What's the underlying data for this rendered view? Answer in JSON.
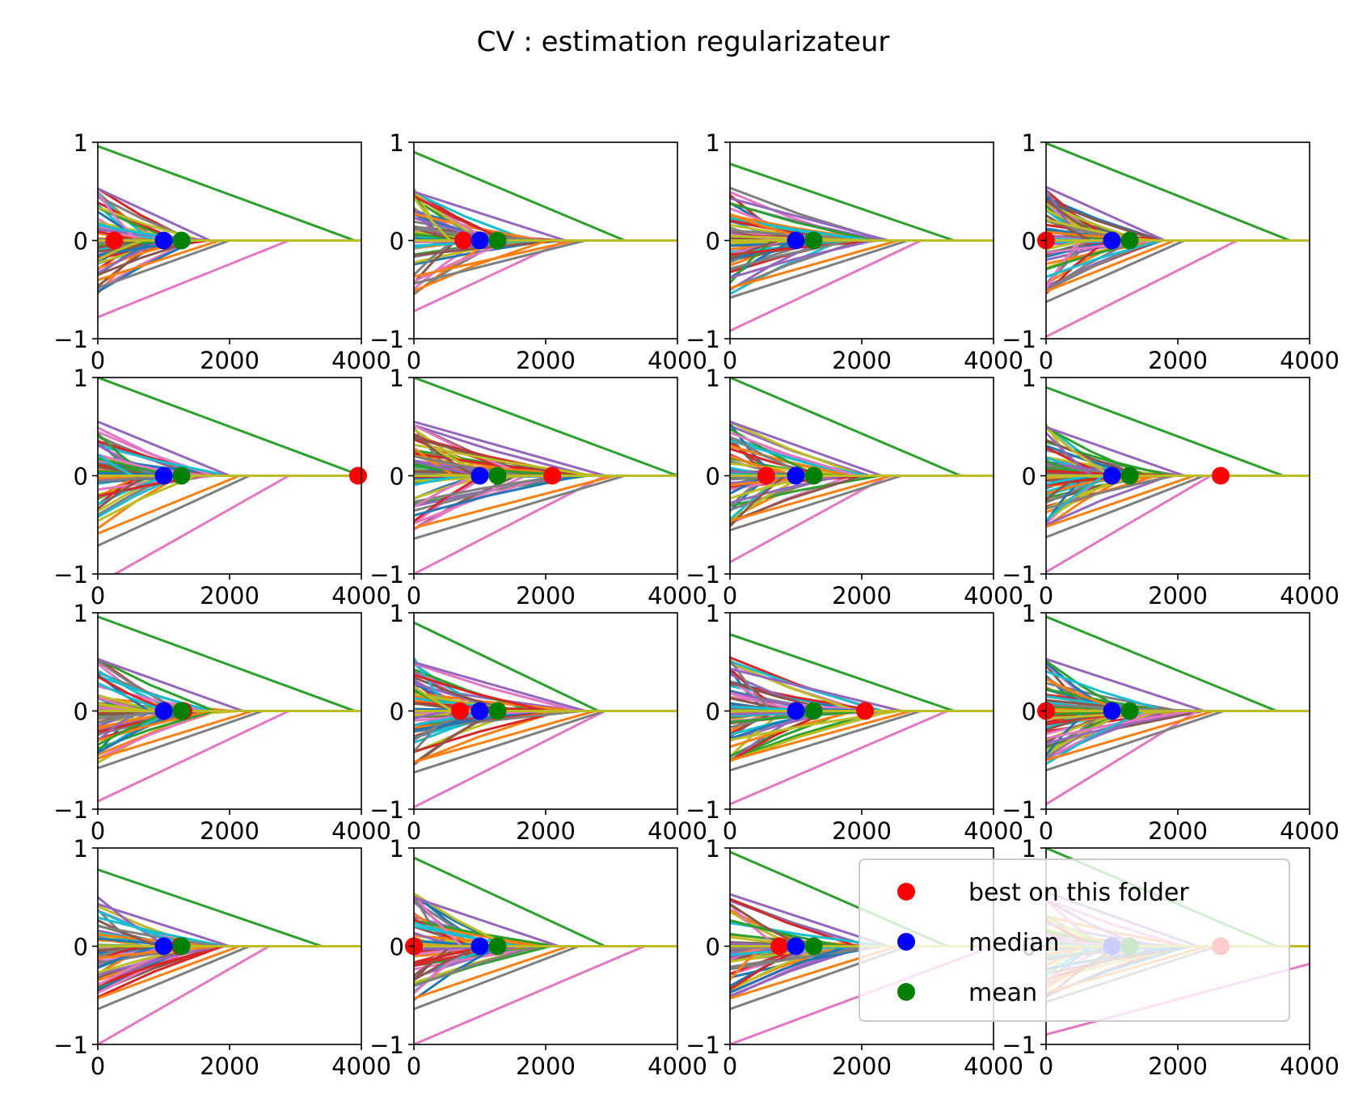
{
  "figure": {
    "title": "CV : estimation regularizateur"
  },
  "chart_data": {
    "type": "line",
    "layout": "4x4 grid of subplots",
    "xlim": [
      0,
      4000
    ],
    "ylim": [
      -1,
      1
    ],
    "xticks": [
      "0",
      "2000",
      "4000"
    ],
    "yticks": [
      "1",
      "0",
      "−1"
    ],
    "grid": false,
    "legend": {
      "placement": "lower-right",
      "entries": [
        {
          "label": "best on this folder",
          "color": "#ff0000"
        },
        {
          "label": "median",
          "color": "#0000ff"
        },
        {
          "label": "mean",
          "color": "#008000"
        }
      ]
    },
    "median": 1000,
    "mean": 1270,
    "subplots": [
      {
        "best": 250,
        "green_top": [
          0.96,
          3900
        ],
        "pink_bottom": [
          -0.78,
          2900
        ],
        "spread_end": 1700
      },
      {
        "best": 750,
        "green_top": [
          0.9,
          3200
        ],
        "pink_bottom": [
          -0.72,
          2300
        ],
        "spread_end": 2300
      },
      {
        "best": 1000,
        "green_top": [
          0.78,
          3400
        ],
        "pink_bottom": [
          -0.92,
          2900
        ],
        "spread_end": 2400
      },
      {
        "best": 0,
        "green_top": [
          0.99,
          3700
        ],
        "pink_bottom": [
          -0.98,
          2900
        ],
        "spread_end": 1800
      },
      {
        "best": 3950,
        "green_top": [
          1.0,
          4000
        ],
        "pink_bottom": [
          -1.1,
          2900
        ],
        "spread_end": 2000
      },
      {
        "best": 2100,
        "green_top": [
          1.0,
          4000
        ],
        "pink_bottom": [
          -1.0,
          2900
        ],
        "spread_end": 2900
      },
      {
        "best": 550,
        "green_top": [
          1.0,
          3500
        ],
        "pink_bottom": [
          -0.88,
          2400
        ],
        "spread_end": 2300
      },
      {
        "best": 2650,
        "green_top": [
          0.9,
          3600
        ],
        "pink_bottom": [
          -0.98,
          2500
        ],
        "spread_end": 2100
      },
      {
        "best": 1300,
        "green_top": [
          0.96,
          3900
        ],
        "pink_bottom": [
          -0.92,
          2900
        ],
        "spread_end": 2200
      },
      {
        "best": 700,
        "green_top": [
          0.9,
          2800
        ],
        "pink_bottom": [
          -0.98,
          2900
        ],
        "spread_end": 2600
      },
      {
        "best": 2050,
        "green_top": [
          0.78,
          3400
        ],
        "pink_bottom": [
          -0.95,
          3300
        ],
        "spread_end": 2600
      },
      {
        "best": 0,
        "green_top": [
          0.96,
          3500
        ],
        "pink_bottom": [
          -0.95,
          2300
        ],
        "spread_end": 2400
      },
      {
        "best": 1250,
        "green_top": [
          0.78,
          3400
        ],
        "pink_bottom": [
          -1.0,
          2600
        ],
        "spread_end": 2000
      },
      {
        "best": 0,
        "green_top": [
          0.9,
          2900
        ],
        "pink_bottom": [
          -1.0,
          3500
        ],
        "spread_end": 2200
      },
      {
        "best": 750,
        "green_top": [
          0.96,
          3300
        ],
        "pink_bottom": [
          -1.0,
          4000
        ],
        "spread_end": 2400
      },
      {
        "best": 2650,
        "green_top": [
          1.0,
          3500
        ],
        "pink_bottom": [
          -0.9,
          5000
        ],
        "spread_end": 2300
      }
    ]
  }
}
